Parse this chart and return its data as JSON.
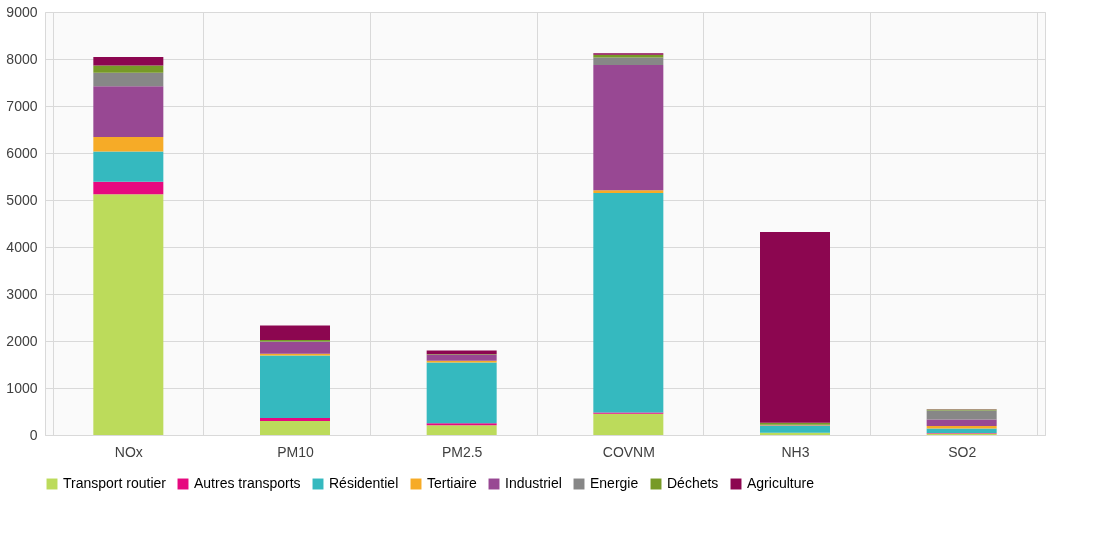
{
  "chart_data": {
    "type": "bar",
    "stacked": true,
    "categories": [
      "NOx",
      "PM10",
      "PM2.5",
      "COVNM",
      "NH3",
      "SO2"
    ],
    "series": [
      {
        "name": "Transport routier",
        "color": "#bcdb5b",
        "values": [
          5120,
          300,
          210,
          450,
          50,
          30
        ]
      },
      {
        "name": "Autres transports",
        "color": "#e6097f",
        "values": [
          270,
          60,
          40,
          30,
          null,
          10
        ]
      },
      {
        "name": "Résidentiel",
        "color": "#35b9bf",
        "values": [
          640,
          1330,
          1290,
          4670,
          140,
          100
        ]
      },
      {
        "name": "Tertiaire",
        "color": "#f6ab27",
        "values": [
          310,
          40,
          40,
          60,
          10,
          50
        ]
      },
      {
        "name": "Industriel",
        "color": "#984893",
        "values": [
          1080,
          250,
          120,
          2660,
          10,
          140
        ]
      },
      {
        "name": "Energie",
        "color": "#878787",
        "values": [
          290,
          10,
          10,
          160,
          10,
          190
        ]
      },
      {
        "name": "Déchets",
        "color": "#779a27",
        "values": [
          150,
          30,
          10,
          60,
          40,
          20
        ]
      },
      {
        "name": "Agriculture",
        "color": "#8c0650",
        "values": [
          180,
          310,
          80,
          30,
          4060,
          10
        ]
      }
    ],
    "ylim": [
      0,
      9000
    ],
    "yticks": [
      0,
      1000,
      2000,
      3000,
      4000,
      5000,
      6000,
      7000,
      8000,
      9000
    ],
    "grid": true,
    "legend": "bottom"
  }
}
